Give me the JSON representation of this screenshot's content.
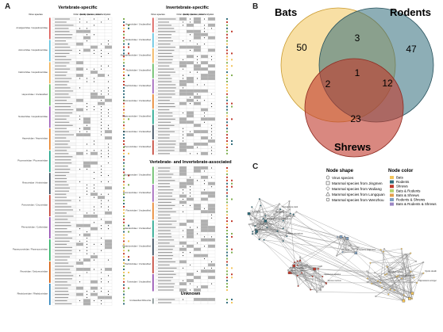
{
  "panels": {
    "a": "A",
    "b": "B",
    "c": "C"
  },
  "panel_a": {
    "left_title": "Vertebrate-specific",
    "right_title_top": "Invertebrate-specific",
    "right_title_mid": "Vertebrate- and Invertebrate-associated",
    "right_title_bottom": "Unknown",
    "col_virus": "Virus species",
    "col_headers": [
      "Order species",
      "Family species",
      "Genus species",
      "Host family",
      "Host"
    ],
    "left_extra_headers": [
      "Bats",
      "Rodents",
      "Shrews"
    ],
    "right_extra_headers": [
      "Bats",
      "Rodents",
      "Shrews"
    ],
    "left_families": [
      "Amalgaviridae / Hepadnaviridae",
      "Astroviridae / Hepadnaviridae",
      "Caliciviridae / Hepadnaviridae",
      "Hepeviridae / Unclassified",
      "Nodaviridae / Hepadnaviridae",
      "Hepeviridae / Hepeviridae",
      "Picornaviridae / Picornaviridae",
      "Retroviridae / Ambiviridae",
      "Parvoviridae / Circoviridae",
      "Phenuiviridae / Coltiviridae",
      "Paramyxoviridae / Paramyxoviridae",
      "Reoviridae / Sedoreoviridae",
      "Rhabdoviridae / Rhabdoviridae"
    ],
    "right_families_top": [
      "Virgaviridae / Unclassified",
      "Nodaviridae / Unclassified",
      "Alphatetraviridae / Unclassified",
      "Nudiviridae / Unclassified",
      "Partitiviridae / Unclassified",
      "Picornaviridae / Unclassified",
      "Phasmaviridae / Unclassified",
      "Picornaviridae / Unclassified",
      "Phenuiviridae / Unclassified"
    ],
    "right_families_mid": [
      "Bunyaviridae / Unclassified",
      "Picornaviridae / Unclassified",
      "Flaviviridae / Unclassified",
      "Hantaviridae / Unclassified",
      "Rhabdoviridae / Unclassified",
      "Partitiviridae / Unclassified",
      "Totiviridae / Unclassified"
    ],
    "right_families_bottom": [
      "Unclassified Riboviria"
    ]
  },
  "venn": {
    "sets": [
      "Bats",
      "Rodents",
      "Shrews"
    ],
    "regions": {
      "bats_only": "50",
      "rodents_only": "47",
      "shrews_only": "23",
      "bats_rodents": "3",
      "bats_shrews": "2",
      "rodents_shrews": "12",
      "all": "1"
    },
    "colors": {
      "bats": "#f2c45a",
      "rodents": "#2f6b7a",
      "shrews": "#c0392b"
    }
  },
  "network": {
    "node_shape_title": "Node shape",
    "node_shape_items": [
      {
        "icon": "hexagon-icon",
        "label": "Virus species"
      },
      {
        "icon": "square-icon",
        "label": "Mammal species from Jingmen"
      },
      {
        "icon": "diamond-icon",
        "label": "Mammal species from Wuliang"
      },
      {
        "icon": "triangle-icon",
        "label": "Mammal species from Longquan"
      },
      {
        "icon": "circle-icon",
        "label": "Mammal species from Wenzhou"
      }
    ],
    "node_color_title": "Node color",
    "node_color_items": [
      {
        "color": "#f2c45a",
        "label": "Bats"
      },
      {
        "color": "#2f6b7a",
        "label": "Rodents"
      },
      {
        "color": "#c0392b",
        "label": "Shrews"
      },
      {
        "color": "#b7d36b",
        "label": "Bats & Rodents"
      },
      {
        "color": "#e3a04c",
        "label": "Bats & Shrews"
      },
      {
        "color": "#7f9fbf",
        "label": "Rodents & Shrews"
      },
      {
        "color": "#9b86c4",
        "label": "Bats & Rodents & Shrews"
      }
    ],
    "node_labels": [
      "Ca. uthendi",
      "Ca. sikkimbaum",
      "Ca. murinus",
      "Rattus norvegicus",
      "Mus musculus",
      "Apodemus agrarius",
      "Suncus murinus",
      "Crocidura lasiura",
      "Rhinolophus affinis",
      "Myotis davidii",
      "Hipposideros armiger",
      "Miniopterus fuliginosus",
      "Rhinolophus ferrumequinum",
      "Myotis ricketti",
      "Hipposideros pratti",
      "Scotophilus kuhlii",
      "Pipistrellus abramus"
    ]
  }
}
